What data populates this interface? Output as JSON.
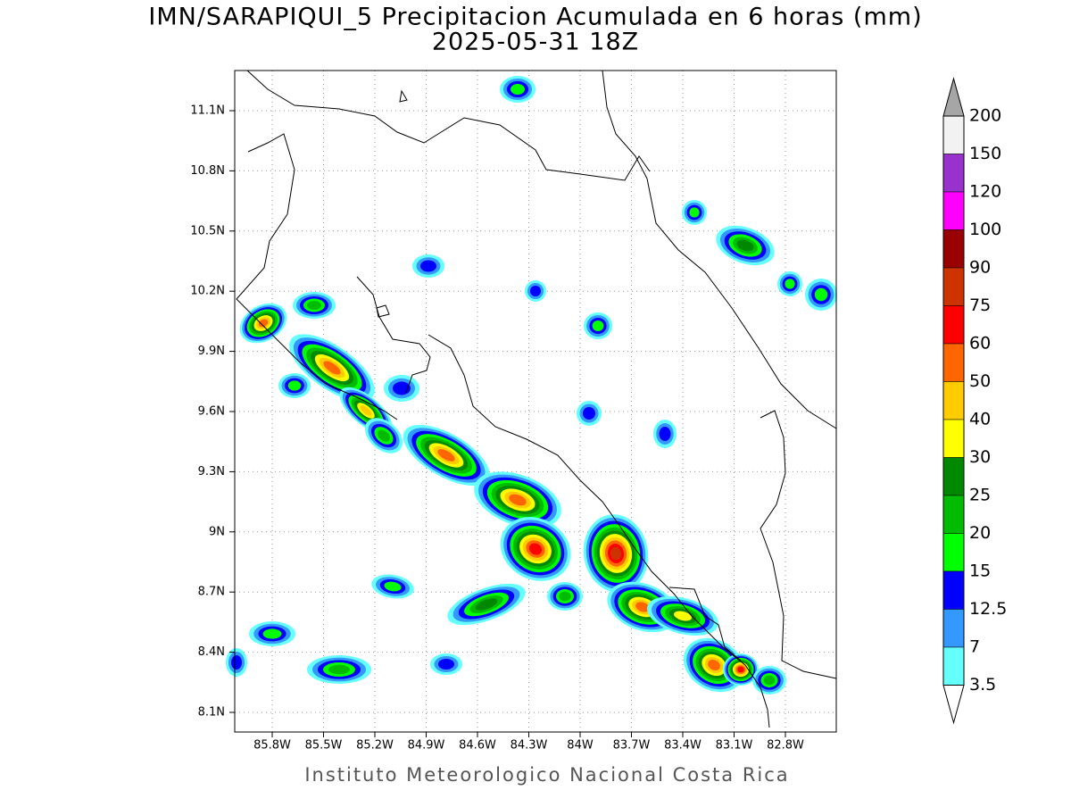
{
  "header": {
    "title": "IMN/SARAPIQUI_5 Precipitacion Acumulada en 6 horas (mm)",
    "subtitle": "2025-05-31 18Z"
  },
  "map": {
    "lat_ticks": [
      "11.1N",
      "10.8N",
      "10.5N",
      "10.2N",
      "9.9N",
      "9.6N",
      "9.3N",
      "9N",
      "8.7N",
      "8.4N",
      "8.1N"
    ],
    "lon_ticks": [
      "85.8W",
      "85.5W",
      "85.2W",
      "84.9W",
      "84.6W",
      "84.3W",
      "84W",
      "83.7W",
      "83.4W",
      "83.1W",
      "82.8W"
    ]
  },
  "colorbar": {
    "levels": [
      200,
      150,
      120,
      100,
      90,
      75,
      60,
      50,
      40,
      30,
      25,
      20,
      15,
      12.5,
      7,
      3.5
    ],
    "colors": [
      "#f2f2f2",
      "#9932cc",
      "#ff00ff",
      "#990000",
      "#cc3300",
      "#ff0000",
      "#ff6600",
      "#ffcc00",
      "#ffff00",
      "#008800",
      "#00bb00",
      "#00ff00",
      "#0000ff",
      "#3399ff",
      "#66ffff"
    ],
    "over_color": "#a6a6a6",
    "under_color": "#ffffff"
  },
  "footer": "Instituto Meteorologico Nacional Costa Rica"
}
